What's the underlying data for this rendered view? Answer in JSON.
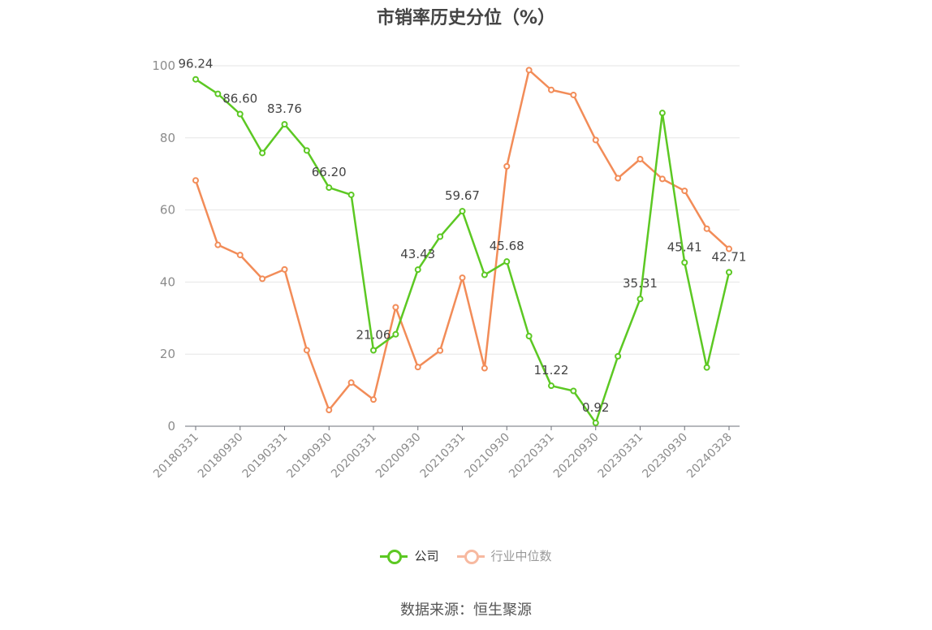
{
  "page": {
    "title": "市销率历史分位（%）",
    "source": "数据来源：恒生聚源"
  },
  "colors": {
    "company": "#5cc823",
    "industry": "#f28c58",
    "industry_legend": "#f7b9a0",
    "grid": "#e6e6e6",
    "axis": "#6e7079"
  },
  "legend": [
    {
      "name": "公司",
      "color": "#5cc823"
    },
    {
      "name": "行业中位数",
      "color": "#f7b9a0"
    }
  ],
  "chart_data": {
    "type": "line",
    "title": "市销率历史分位（%）",
    "ylim": [
      0,
      100
    ],
    "yticks": [
      0,
      20,
      40,
      60,
      80,
      100
    ],
    "grid": true,
    "legend_position": "bottom",
    "xtick_labels": [
      "20180331",
      "20180930",
      "20190331",
      "20190930",
      "20200331",
      "20200930",
      "20210331",
      "20210930",
      "20220331",
      "20220930",
      "20230331",
      "20230930",
      "20240328"
    ],
    "x": [
      "20180331",
      "20180630",
      "20180930",
      "20181231",
      "20190331",
      "20190630",
      "20190930",
      "20191231",
      "20200331",
      "20200630",
      "20200930",
      "20201231",
      "20210331",
      "20210630",
      "20210930",
      "20211231",
      "20220331",
      "20220630",
      "20220930",
      "20221231",
      "20230331",
      "20230630",
      "20230930",
      "20231231",
      "20240328"
    ],
    "series": [
      {
        "name": "公司",
        "values": [
          96.24,
          92.2,
          86.6,
          75.8,
          83.76,
          76.5,
          66.2,
          64.2,
          21.06,
          25.5,
          43.43,
          52.6,
          59.67,
          42.0,
          45.68,
          25.0,
          11.22,
          9.8,
          0.92,
          19.4,
          35.31,
          86.9,
          45.41,
          16.3,
          42.71
        ],
        "labels": [
          "96.24",
          "",
          "86.60",
          "",
          "83.76",
          "",
          "66.20",
          "",
          "21.06",
          "",
          "43.43",
          "",
          "59.67",
          "",
          "45.68",
          "",
          "11.22",
          "",
          "0.92",
          "",
          "35.31",
          "",
          "45.41",
          "",
          "42.71"
        ]
      },
      {
        "name": "行业中位数",
        "values": [
          68.2,
          50.3,
          47.5,
          40.9,
          43.5,
          21.1,
          4.5,
          12.1,
          7.4,
          33.0,
          16.4,
          21.0,
          41.2,
          16.1,
          72.1,
          98.8,
          93.3,
          91.9,
          79.4,
          68.8,
          74.1,
          68.6,
          65.3,
          54.8,
          49.2
        ]
      }
    ]
  }
}
